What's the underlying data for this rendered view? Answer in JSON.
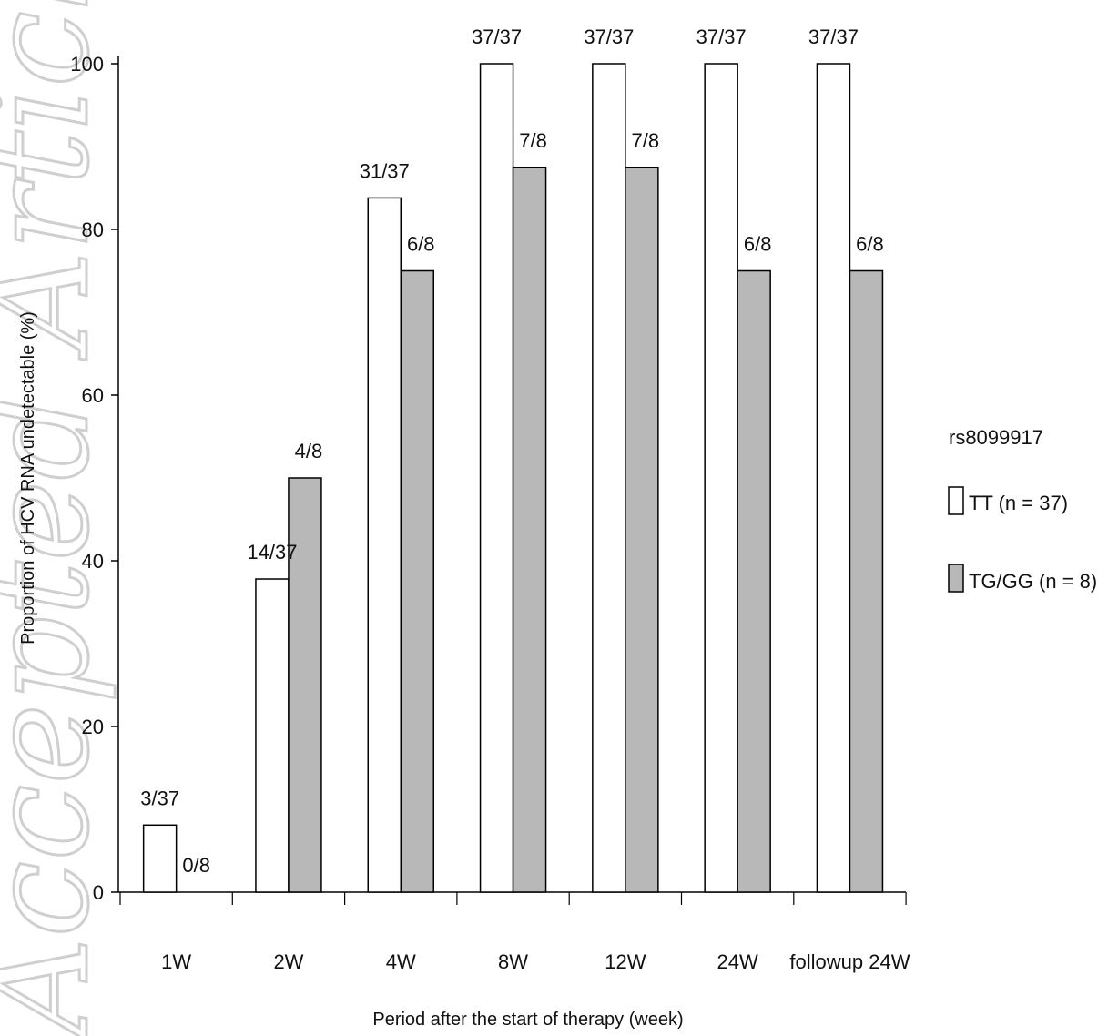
{
  "chart_data": {
    "type": "bar",
    "title": "",
    "xlabel": "Period after the start of therapy (week)",
    "ylabel": "Proportion of HCV RNA undetectable (%)",
    "ylim": [
      0,
      100
    ],
    "yticks": [
      0,
      20,
      40,
      60,
      80,
      100
    ],
    "categories": [
      "1W",
      "2W",
      "4W",
      "8W",
      "12W",
      "24W",
      "followup 24W"
    ],
    "legend_title": "rs8099917",
    "legend_position": "right",
    "series": [
      {
        "name": "TT (n = 37)",
        "color": "#ffffff",
        "values": [
          8.1,
          37.8,
          83.8,
          100,
          100,
          100,
          100
        ],
        "labels": [
          "3/37",
          "14/37",
          "31/37",
          "37/37",
          "37/37",
          "37/37",
          "37/37"
        ]
      },
      {
        "name": "TG/GG (n = 8)",
        "color": "#b8b8b8",
        "values": [
          0,
          50,
          75,
          87.5,
          87.5,
          75,
          75
        ],
        "labels": [
          "0/8",
          "4/8",
          "6/8",
          "7/8",
          "7/8",
          "6/8",
          "6/8"
        ]
      }
    ],
    "watermark": "Accepted Article"
  }
}
